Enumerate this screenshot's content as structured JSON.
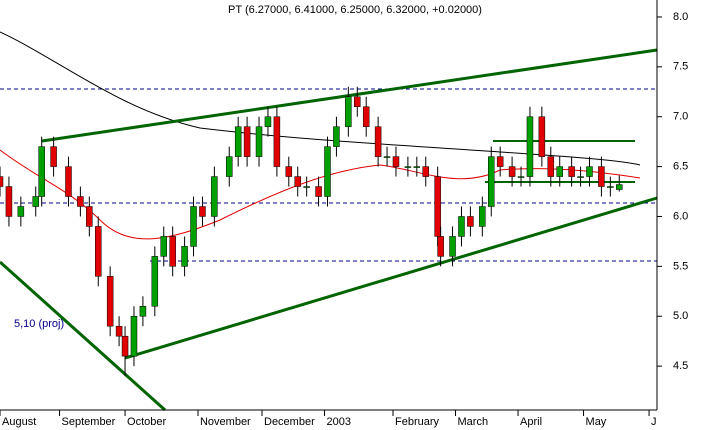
{
  "chart_data": {
    "type": "candlestick",
    "title": "PT (6.27000, 6.41000, 6.25000, 6.32000, +0.02000)",
    "annotation": "5,10 (proj)",
    "x": [
      0,
      3,
      7,
      12,
      14,
      18,
      23,
      27,
      30,
      33,
      37,
      40,
      42,
      45,
      48,
      52,
      55,
      58,
      62,
      65,
      68,
      72,
      77,
      80,
      83,
      87,
      90,
      93,
      97,
      100,
      103,
      107,
      110,
      113,
      117,
      120,
      123,
      127,
      130,
      133,
      137,
      140,
      143,
      147,
      148,
      152,
      155,
      158,
      162,
      165,
      168,
      172,
      175,
      178,
      182,
      185,
      188,
      192,
      195,
      198,
      202,
      205,
      208
    ],
    "open": [
      6.4,
      6.3,
      6.0,
      6.1,
      6.2,
      6.7,
      6.5,
      6.2,
      6.1,
      5.9,
      5.4,
      4.9,
      4.8,
      4.6,
      5.0,
      5.1,
      5.6,
      5.8,
      5.5,
      5.7,
      6.1,
      6.0,
      6.4,
      6.6,
      6.9,
      6.6,
      6.9,
      7.0,
      6.5,
      6.4,
      6.3,
      6.3,
      6.2,
      6.7,
      6.9,
      7.2,
      7.1,
      6.9,
      6.6,
      6.6,
      6.5,
      6.5,
      6.5,
      6.4,
      5.8,
      5.6,
      5.8,
      6.0,
      5.9,
      6.1,
      6.6,
      6.5,
      6.4,
      6.4,
      7.0,
      6.6,
      6.4,
      6.5,
      6.4,
      6.4,
      6.5,
      6.3,
      6.27
    ],
    "high": [
      6.5,
      6.4,
      6.2,
      6.3,
      6.8,
      6.8,
      6.6,
      6.3,
      6.2,
      6.0,
      5.5,
      5.0,
      4.9,
      5.1,
      5.2,
      5.7,
      5.9,
      5.9,
      5.8,
      6.2,
      6.2,
      6.5,
      6.7,
      7.0,
      7.0,
      7.0,
      7.1,
      7.1,
      6.6,
      6.5,
      6.4,
      6.4,
      6.8,
      7.0,
      7.3,
      7.3,
      7.2,
      7.0,
      6.7,
      6.7,
      6.6,
      6.6,
      6.6,
      6.5,
      5.9,
      5.9,
      6.1,
      6.1,
      6.2,
      6.7,
      6.7,
      6.6,
      6.5,
      7.1,
      7.1,
      6.7,
      6.6,
      6.6,
      6.5,
      6.6,
      6.6,
      6.4,
      6.41
    ],
    "low": [
      6.2,
      5.9,
      5.9,
      6.0,
      6.1,
      6.4,
      6.1,
      6.0,
      5.8,
      5.3,
      4.8,
      4.7,
      4.4,
      4.5,
      4.9,
      5.0,
      5.5,
      5.4,
      5.4,
      5.6,
      5.9,
      5.9,
      6.3,
      6.5,
      6.5,
      6.5,
      6.8,
      6.4,
      6.3,
      6.2,
      6.2,
      6.1,
      6.1,
      6.6,
      6.8,
      7.0,
      6.8,
      6.5,
      6.5,
      6.4,
      6.4,
      6.4,
      6.3,
      5.7,
      5.5,
      5.5,
      5.7,
      5.8,
      5.8,
      6.0,
      6.4,
      6.3,
      6.3,
      6.3,
      6.5,
      6.3,
      6.3,
      6.3,
      6.3,
      6.3,
      6.2,
      6.2,
      6.25
    ],
    "close": [
      6.3,
      6.0,
      6.1,
      6.2,
      6.7,
      6.5,
      6.2,
      6.1,
      5.9,
      5.4,
      4.9,
      4.8,
      4.6,
      5.0,
      5.1,
      5.6,
      5.8,
      5.5,
      5.7,
      6.1,
      6.0,
      6.4,
      6.6,
      6.9,
      6.6,
      6.9,
      7.0,
      6.5,
      6.4,
      6.3,
      6.3,
      6.2,
      6.7,
      6.9,
      7.2,
      7.1,
      6.9,
      6.6,
      6.6,
      6.5,
      6.5,
      6.5,
      6.4,
      5.8,
      5.6,
      5.8,
      6.0,
      5.9,
      6.1,
      6.6,
      6.5,
      6.4,
      6.4,
      7.0,
      6.6,
      6.4,
      6.5,
      6.4,
      6.4,
      6.5,
      6.3,
      6.3,
      6.32
    ],
    "up_color": "#00a000",
    "down_color": "#e00000",
    "xlim": [
      0,
      220
    ],
    "ylim": [
      4.06,
      8.17
    ],
    "xticks": [
      {
        "value": 0,
        "label": "August"
      },
      {
        "value": 20,
        "label": "September"
      },
      {
        "value": 42,
        "label": "October"
      },
      {
        "value": 66.5,
        "label": "November"
      },
      {
        "value": 88,
        "label": "December"
      },
      {
        "value": 109,
        "label": "2003"
      },
      {
        "value": 132,
        "label": "February"
      },
      {
        "value": 153,
        "label": "March"
      },
      {
        "value": 174,
        "label": "April"
      },
      {
        "value": 196,
        "label": "May"
      },
      {
        "value": 218,
        "label": "J"
      }
    ],
    "yticks": [
      {
        "value": 4.5,
        "label": "4.5"
      },
      {
        "value": 5,
        "label": "5.0"
      },
      {
        "value": 5.5,
        "label": "5.5"
      },
      {
        "value": 6,
        "label": "6.0"
      },
      {
        "value": 6.5,
        "label": "6.5"
      },
      {
        "value": 7,
        "label": "7.0"
      },
      {
        "value": 7.5,
        "label": "7.5"
      },
      {
        "value": 8,
        "label": "8.0"
      }
    ]
  }
}
